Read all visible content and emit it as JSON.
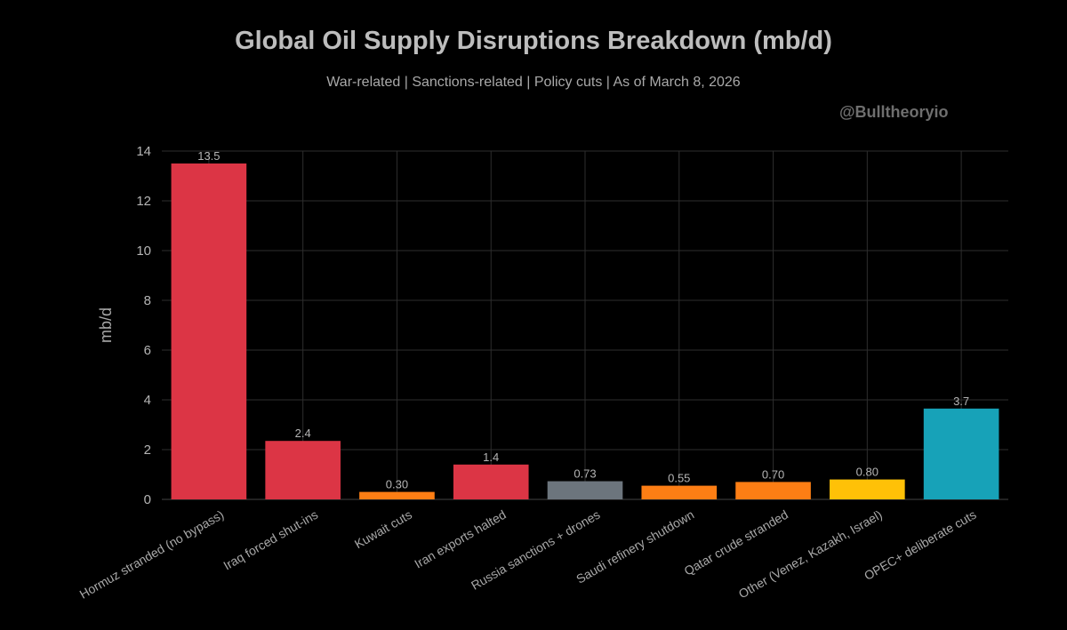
{
  "chart_data": {
    "type": "bar",
    "title": "Global Oil Supply Disruptions Breakdown (mb/d)",
    "subtitle": "War-related | Sanctions-related | Policy cuts | As of March 8, 2026",
    "watermark": "@Bulltheoryio",
    "xlabel": "",
    "ylabel": "mb/d",
    "ylim": [
      0,
      14
    ],
    "yticks": [
      0,
      2,
      4,
      6,
      8,
      10,
      12,
      14
    ],
    "grid": true,
    "categories": [
      "Hormuz stranded (no bypass)",
      "Iraq forced shut-ins",
      "Kuwait cuts",
      "Iran exports halted",
      "Russia sanctions + drones",
      "Saudi refinery shutdown",
      "Qatar crude stranded",
      "Other (Venez, Kazakh, Israel)",
      "OPEC+ deliberate cuts"
    ],
    "values": [
      13.5,
      2.35,
      0.3,
      1.4,
      0.73,
      0.55,
      0.7,
      0.8,
      3.65
    ],
    "value_labels": [
      "13.5",
      "2.4",
      "0.30",
      "1.4",
      "0.73",
      "0.55",
      "0.70",
      "0.80",
      "3.7"
    ],
    "colors": [
      "#dc3545",
      "#dc3545",
      "#fd7e14",
      "#dc3545",
      "#6c757d",
      "#fd7e14",
      "#fd7e14",
      "#ffc107",
      "#17a2b8"
    ]
  }
}
